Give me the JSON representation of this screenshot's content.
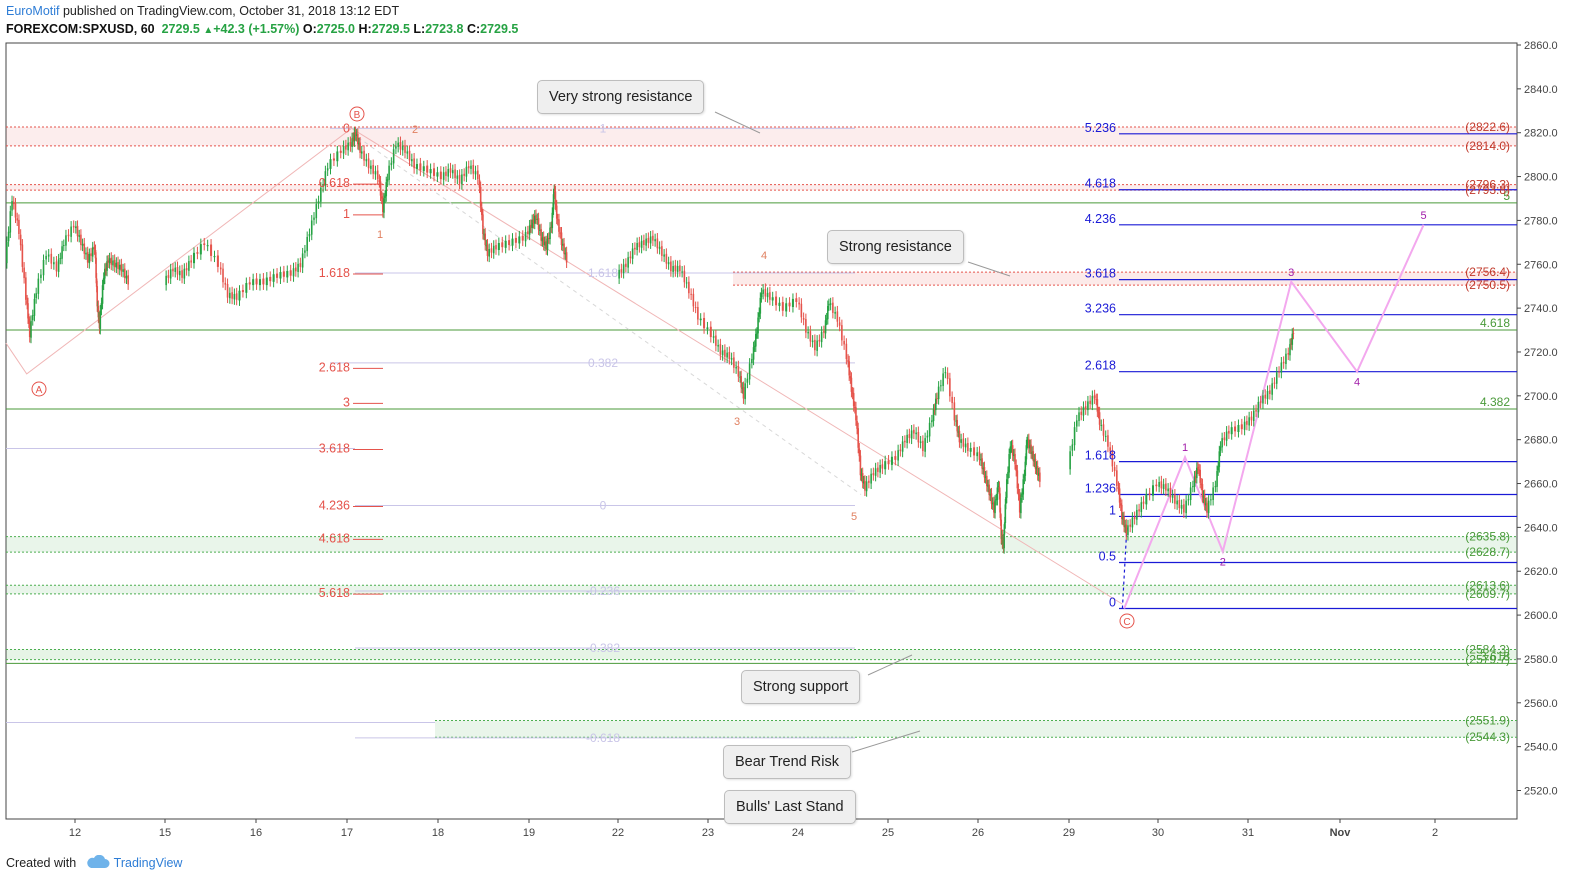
{
  "header": {
    "author": "EuroMotif",
    "published_text": "published on TradingView.com, October 31, 2018 13:12 EDT",
    "symbol": "FOREXCOM:SPXUSD, 60",
    "last": "2729.5",
    "change": "+42.3 (+1.57%)",
    "ohlc": {
      "o_label": "O:",
      "o": "2725.0",
      "h_label": "H:",
      "h": "2729.5",
      "l_label": "L:",
      "l": "2723.8",
      "c_label": "C:",
      "c": "2729.5"
    }
  },
  "footer": {
    "created_with": "Created with",
    "brand": "TradingView"
  },
  "callouts": {
    "very_strong_resistance": "Very strong resistance",
    "strong_resistance": "Strong resistance",
    "strong_support": "Strong support",
    "bear_trend_risk": "Bear Trend Risk",
    "bulls_last_stand": "Bulls' Last Stand"
  },
  "colors": {
    "up": "#26a243",
    "down": "#e5534b",
    "fib_blue": "#1a1ad6",
    "fib_red": "#e5534b",
    "fib_green": "#4a9a3a",
    "wave_pink": "#f3a8ee",
    "wave_label": "#a01aa8"
  },
  "chart_data": {
    "type": "candlestick",
    "symbol": "FOREXCOM:SPXUSD",
    "interval": "60",
    "y_axis_ticks": [
      "2520.0",
      "2540.0",
      "2560.0",
      "2580.0",
      "2600.0",
      "2620.0",
      "2640.0",
      "2660.0",
      "2680.0",
      "2700.0",
      "2720.0",
      "2740.0",
      "2760.0",
      "2780.0",
      "2800.0",
      "2820.0",
      "2840.0",
      "2860.0"
    ],
    "ylim": [
      2510,
      2863
    ],
    "x_axis_ticks": [
      "12",
      "15",
      "16",
      "17",
      "18",
      "19",
      "22",
      "23",
      "24",
      "25",
      "26",
      "29",
      "30",
      "31",
      "Nov",
      "2"
    ],
    "price_path": [
      {
        "d": 11.0,
        "p": 2762
      },
      {
        "d": 11.1,
        "p": 2790
      },
      {
        "d": 11.2,
        "p": 2775
      },
      {
        "d": 11.3,
        "p": 2745
      },
      {
        "d": 11.35,
        "p": 2728
      },
      {
        "d": 11.45,
        "p": 2748
      },
      {
        "d": 11.6,
        "p": 2765
      },
      {
        "d": 11.75,
        "p": 2758
      },
      {
        "d": 11.85,
        "p": 2770
      },
      {
        "d": 12.0,
        "p": 2778
      },
      {
        "d": 12.15,
        "p": 2770
      },
      {
        "d": 12.3,
        "p": 2762
      },
      {
        "d": 12.45,
        "p": 2768
      },
      {
        "d": 12.5,
        "p": 2742
      },
      {
        "d": 12.55,
        "p": 2732
      },
      {
        "d": 12.65,
        "p": 2755
      },
      {
        "d": 12.75,
        "p": 2762
      },
      {
        "d": 12.9,
        "p": 2760
      },
      {
        "d": 13.05,
        "p": 2758
      },
      {
        "d": 13.2,
        "p": 2752
      },
      {
        "d": 15.0,
        "p": 2752
      },
      {
        "d": 15.1,
        "p": 2758
      },
      {
        "d": 15.2,
        "p": 2755
      },
      {
        "d": 15.3,
        "p": 2762
      },
      {
        "d": 15.45,
        "p": 2770
      },
      {
        "d": 15.6,
        "p": 2760
      },
      {
        "d": 15.7,
        "p": 2746
      },
      {
        "d": 15.8,
        "p": 2745
      },
      {
        "d": 15.95,
        "p": 2752
      },
      {
        "d": 16.1,
        "p": 2752
      },
      {
        "d": 16.25,
        "p": 2755
      },
      {
        "d": 16.4,
        "p": 2756
      },
      {
        "d": 16.5,
        "p": 2760
      },
      {
        "d": 16.6,
        "p": 2775
      },
      {
        "d": 16.7,
        "p": 2790
      },
      {
        "d": 16.8,
        "p": 2805
      },
      {
        "d": 16.95,
        "p": 2812
      },
      {
        "d": 17.05,
        "p": 2815
      },
      {
        "d": 17.1,
        "p": 2820
      },
      {
        "d": 17.15,
        "p": 2812
      },
      {
        "d": 17.25,
        "p": 2805
      },
      {
        "d": 17.35,
        "p": 2800
      },
      {
        "d": 17.4,
        "p": 2785
      },
      {
        "d": 17.45,
        "p": 2800
      },
      {
        "d": 17.55,
        "p": 2815
      },
      {
        "d": 17.65,
        "p": 2812
      },
      {
        "d": 17.75,
        "p": 2805
      },
      {
        "d": 17.9,
        "p": 2803
      },
      {
        "d": 18.05,
        "p": 2800
      },
      {
        "d": 18.15,
        "p": 2803
      },
      {
        "d": 18.25,
        "p": 2798
      },
      {
        "d": 18.35,
        "p": 2805
      },
      {
        "d": 18.45,
        "p": 2800
      },
      {
        "d": 18.5,
        "p": 2775
      },
      {
        "d": 18.55,
        "p": 2765
      },
      {
        "d": 18.65,
        "p": 2768
      },
      {
        "d": 18.8,
        "p": 2770
      },
      {
        "d": 18.95,
        "p": 2772
      },
      {
        "d": 19.05,
        "p": 2778
      },
      {
        "d": 19.15,
        "p": 2782
      },
      {
        "d": 19.25,
        "p": 2772
      },
      {
        "d": 19.35,
        "p": 2768
      },
      {
        "d": 19.45,
        "p": 2778
      },
      {
        "d": 19.5,
        "p": 2795
      },
      {
        "d": 19.55,
        "p": 2782
      },
      {
        "d": 19.65,
        "p": 2770
      },
      {
        "d": 19.75,
        "p": 2762
      },
      {
        "d": 22.0,
        "p": 2755
      },
      {
        "d": 22.1,
        "p": 2760
      },
      {
        "d": 22.2,
        "p": 2768
      },
      {
        "d": 22.3,
        "p": 2770
      },
      {
        "d": 22.4,
        "p": 2772
      },
      {
        "d": 22.5,
        "p": 2765
      },
      {
        "d": 22.6,
        "p": 2758
      },
      {
        "d": 22.7,
        "p": 2758
      },
      {
        "d": 22.8,
        "p": 2748
      },
      {
        "d": 22.9,
        "p": 2736
      },
      {
        "d": 23.05,
        "p": 2728
      },
      {
        "d": 23.15,
        "p": 2720
      },
      {
        "d": 23.25,
        "p": 2718
      },
      {
        "d": 23.35,
        "p": 2710
      },
      {
        "d": 23.4,
        "p": 2700
      },
      {
        "d": 23.5,
        "p": 2718
      },
      {
        "d": 23.55,
        "p": 2730
      },
      {
        "d": 23.6,
        "p": 2748
      },
      {
        "d": 23.7,
        "p": 2745
      },
      {
        "d": 23.85,
        "p": 2740
      },
      {
        "d": 24.0,
        "p": 2744
      },
      {
        "d": 24.1,
        "p": 2730
      },
      {
        "d": 24.2,
        "p": 2722
      },
      {
        "d": 24.3,
        "p": 2730
      },
      {
        "d": 24.35,
        "p": 2743
      },
      {
        "d": 24.45,
        "p": 2735
      },
      {
        "d": 24.55,
        "p": 2718
      },
      {
        "d": 24.6,
        "p": 2703
      },
      {
        "d": 24.65,
        "p": 2690
      },
      {
        "d": 24.7,
        "p": 2665
      },
      {
        "d": 24.75,
        "p": 2658
      },
      {
        "d": 24.85,
        "p": 2665
      },
      {
        "d": 24.95,
        "p": 2668
      },
      {
        "d": 25.1,
        "p": 2672
      },
      {
        "d": 25.2,
        "p": 2680
      },
      {
        "d": 25.3,
        "p": 2684
      },
      {
        "d": 25.4,
        "p": 2676
      },
      {
        "d": 25.5,
        "p": 2690
      },
      {
        "d": 25.55,
        "p": 2700
      },
      {
        "d": 25.65,
        "p": 2712
      },
      {
        "d": 25.75,
        "p": 2690
      },
      {
        "d": 25.8,
        "p": 2680
      },
      {
        "d": 25.9,
        "p": 2676
      },
      {
        "d": 26.05,
        "p": 2672
      },
      {
        "d": 26.15,
        "p": 2664
      },
      {
        "d": 26.25,
        "p": 2656
      },
      {
        "d": 26.35,
        "p": 2648
      },
      {
        "d": 26.45,
        "p": 2660
      },
      {
        "d": 26.5,
        "p": 2636
      },
      {
        "d": 26.55,
        "p": 2632
      },
      {
        "d": 26.6,
        "p": 2655
      },
      {
        "d": 26.7,
        "p": 2678
      },
      {
        "d": 26.8,
        "p": 2670
      },
      {
        "d": 26.9,
        "p": 2648
      },
      {
        "d": 27.0,
        "p": 2665
      },
      {
        "d": 27.05,
        "p": 2680
      },
      {
        "d": 27.15,
        "p": 2675
      },
      {
        "d": 27.25,
        "p": 2668
      },
      {
        "d": 27.35,
        "p": 2662
      },
      {
        "d": 29.0,
        "p": 2668
      },
      {
        "d": 29.1,
        "p": 2690
      },
      {
        "d": 29.2,
        "p": 2695
      },
      {
        "d": 29.3,
        "p": 2700
      },
      {
        "d": 29.35,
        "p": 2688
      },
      {
        "d": 29.45,
        "p": 2678
      },
      {
        "d": 29.55,
        "p": 2660
      },
      {
        "d": 29.6,
        "p": 2645
      },
      {
        "d": 29.65,
        "p": 2638
      },
      {
        "d": 29.75,
        "p": 2645
      },
      {
        "d": 29.85,
        "p": 2652
      },
      {
        "d": 30.0,
        "p": 2660
      },
      {
        "d": 30.1,
        "p": 2658
      },
      {
        "d": 30.2,
        "p": 2652
      },
      {
        "d": 30.3,
        "p": 2648
      },
      {
        "d": 30.4,
        "p": 2660
      },
      {
        "d": 30.45,
        "p": 2668
      },
      {
        "d": 30.5,
        "p": 2655
      },
      {
        "d": 30.55,
        "p": 2648
      },
      {
        "d": 30.65,
        "p": 2660
      },
      {
        "d": 30.7,
        "p": 2678
      },
      {
        "d": 30.8,
        "p": 2684
      },
      {
        "d": 30.95,
        "p": 2686
      },
      {
        "d": 31.05,
        "p": 2690
      },
      {
        "d": 31.15,
        "p": 2698
      },
      {
        "d": 31.25,
        "p": 2702
      },
      {
        "d": 31.35,
        "p": 2712
      },
      {
        "d": 31.45,
        "p": 2720
      },
      {
        "d": 31.5,
        "p": 2729.5
      }
    ],
    "fib_levels_blue": [
      "5.236",
      "4.618",
      "4.236",
      "3.618",
      "3.236",
      "2.618",
      "1.618",
      "1.236",
      "1",
      "0.5",
      "0"
    ],
    "fib_levels_red_left": [
      "0",
      "0.618",
      "1",
      "1.618",
      "2.618",
      "3",
      "3.618",
      "4.236",
      "4.618",
      "5.618"
    ],
    "fib_levels_faint": [
      "1",
      "1.618",
      "0.382",
      "0",
      "-0.236",
      "-0.382",
      "-0.618"
    ],
    "green_levels": [
      "5",
      "4.618",
      "4.382",
      "3.618"
    ],
    "price_labels": [
      "(2822.6)",
      "(2814.0)",
      "(2796.3)",
      "(2793.8)",
      "(2756.4)",
      "(2750.5)",
      "(2635.8)",
      "(2628.7)",
      "(2613.6)",
      "(2609.7)",
      "(2584.3)",
      "(2579.7)",
      "(2551.9)",
      "(2544.3)"
    ],
    "wave_labels_red": [
      "A",
      "B",
      "C",
      "1",
      "2",
      "3",
      "4",
      "5"
    ],
    "wave_labels_purple": [
      "1",
      "2",
      "3",
      "4",
      "5"
    ]
  }
}
